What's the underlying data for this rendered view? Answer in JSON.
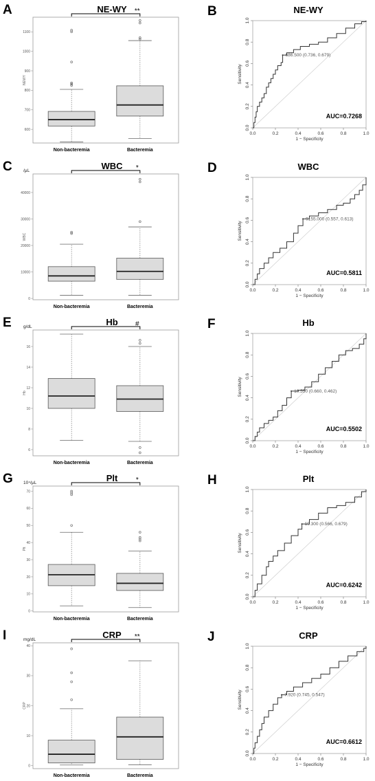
{
  "panels": [
    {
      "letter": "A",
      "title": "NE-WY",
      "unit": "",
      "ylabel": "NEWY",
      "sig": "**",
      "chart_data": {
        "type": "box",
        "categories": [
          "Non-bacteremia",
          "Bacteremia"
        ],
        "ylim": [
          530,
          1175
        ],
        "yticks": [
          600,
          700,
          800,
          900,
          1000,
          1100
        ],
        "boxes": [
          {
            "whisker_low": 535,
            "q1": 617,
            "median": 650,
            "q3": 692,
            "whisker_high": 805,
            "outliers": [
              825,
              832,
              838,
              945,
              1100,
              1108
            ]
          },
          {
            "whisker_low": 553,
            "q1": 668,
            "median": 725,
            "q3": 823,
            "whisker_high": 1055,
            "outliers": [
              1063,
              1070,
              1145,
              1158
            ]
          }
        ]
      }
    },
    {
      "letter": "B",
      "title": "NE-WY",
      "annotation": "686.500 (0.736, 0.679)",
      "auc": "AUC=0.7268",
      "xlabel": "1 − Specificity",
      "ylabel": "Sensitivity",
      "chart_data": {
        "type": "line",
        "xlim": [
          0,
          1
        ],
        "ylim": [
          0,
          1
        ],
        "ticks": [
          0.0,
          0.2,
          0.4,
          0.6,
          0.8,
          1.0
        ],
        "threshold_point": [
          0.264,
          0.679
        ],
        "roc": [
          [
            0,
            0
          ],
          [
            0.01,
            0.05
          ],
          [
            0.02,
            0.1
          ],
          [
            0.03,
            0.15
          ],
          [
            0.04,
            0.2
          ],
          [
            0.06,
            0.24
          ],
          [
            0.08,
            0.28
          ],
          [
            0.1,
            0.32
          ],
          [
            0.12,
            0.38
          ],
          [
            0.14,
            0.42
          ],
          [
            0.16,
            0.46
          ],
          [
            0.18,
            0.5
          ],
          [
            0.2,
            0.54
          ],
          [
            0.22,
            0.58
          ],
          [
            0.25,
            0.61
          ],
          [
            0.264,
            0.679
          ],
          [
            0.3,
            0.7
          ],
          [
            0.36,
            0.73
          ],
          [
            0.42,
            0.76
          ],
          [
            0.5,
            0.78
          ],
          [
            0.58,
            0.8
          ],
          [
            0.66,
            0.84
          ],
          [
            0.74,
            0.88
          ],
          [
            0.82,
            0.93
          ],
          [
            0.9,
            0.97
          ],
          [
            0.96,
            0.99
          ],
          [
            1,
            1
          ]
        ]
      }
    },
    {
      "letter": "C",
      "title": "WBC",
      "unit": "/μL",
      "ylabel": "WBC",
      "sig": "*",
      "chart_data": {
        "type": "box",
        "categories": [
          "Non-bacteremia",
          "Bacteremia"
        ],
        "ylim": [
          -500,
          47000
        ],
        "yticks": [
          0,
          10000,
          20000,
          30000,
          40000
        ],
        "boxes": [
          {
            "whisker_low": 1200,
            "q1": 6500,
            "median": 8500,
            "q3": 12000,
            "whisker_high": 20500,
            "outliers": [
              24500,
              25000
            ]
          },
          {
            "whisker_low": 1200,
            "q1": 7200,
            "median": 10200,
            "q3": 15200,
            "whisker_high": 27000,
            "outliers": [
              29000,
              44000,
              45000
            ]
          }
        ]
      }
    },
    {
      "letter": "D",
      "title": "WBC",
      "annotation": "9155.000 (0.557, 0.613)",
      "auc": "AUC=0.5811",
      "xlabel": "1 − Specificity",
      "ylabel": "Sensitivity",
      "chart_data": {
        "type": "line",
        "xlim": [
          0,
          1
        ],
        "ylim": [
          0,
          1
        ],
        "ticks": [
          0.0,
          0.2,
          0.4,
          0.6,
          0.8,
          1.0
        ],
        "threshold_point": [
          0.443,
          0.613
        ],
        "roc": [
          [
            0,
            0
          ],
          [
            0.02,
            0.05
          ],
          [
            0.04,
            0.1
          ],
          [
            0.06,
            0.15
          ],
          [
            0.1,
            0.2
          ],
          [
            0.14,
            0.25
          ],
          [
            0.18,
            0.3
          ],
          [
            0.24,
            0.34
          ],
          [
            0.3,
            0.4
          ],
          [
            0.36,
            0.48
          ],
          [
            0.4,
            0.55
          ],
          [
            0.443,
            0.613
          ],
          [
            0.5,
            0.64
          ],
          [
            0.58,
            0.67
          ],
          [
            0.66,
            0.7
          ],
          [
            0.74,
            0.74
          ],
          [
            0.8,
            0.76
          ],
          [
            0.86,
            0.8
          ],
          [
            0.9,
            0.84
          ],
          [
            0.94,
            0.88
          ],
          [
            0.97,
            0.93
          ],
          [
            1,
            1
          ]
        ]
      }
    },
    {
      "letter": "E",
      "title": "Hb",
      "unit": "g/dL",
      "ylabel": "Hb",
      "sig": "#",
      "chart_data": {
        "type": "box",
        "categories": [
          "Non-bacteremia",
          "Bacteremia"
        ],
        "ylim": [
          5.4,
          17.6
        ],
        "yticks": [
          6,
          8,
          10,
          12,
          14,
          16
        ],
        "boxes": [
          {
            "whisker_low": 6.9,
            "q1": 10.0,
            "median": 11.2,
            "q3": 12.9,
            "whisker_high": 17.2,
            "outliers": []
          },
          {
            "whisker_low": 6.8,
            "q1": 9.7,
            "median": 10.9,
            "q3": 12.2,
            "whisker_high": 16.0,
            "outliers": [
              16.3,
              16.6,
              6.2,
              5.7
            ]
          }
        ]
      }
    },
    {
      "letter": "F",
      "title": "Hb",
      "annotation": "10.550 (0.660, 0.462)",
      "auc": "AUC=0.5502",
      "xlabel": "1 − Specificity",
      "ylabel": "Sensitivity",
      "chart_data": {
        "type": "line",
        "xlim": [
          0,
          1
        ],
        "ylim": [
          0,
          1
        ],
        "ticks": [
          0.0,
          0.2,
          0.4,
          0.6,
          0.8,
          1.0
        ],
        "threshold_point": [
          0.34,
          0.462
        ],
        "roc": [
          [
            0,
            0
          ],
          [
            0.02,
            0.04
          ],
          [
            0.04,
            0.08
          ],
          [
            0.06,
            0.12
          ],
          [
            0.1,
            0.16
          ],
          [
            0.14,
            0.19
          ],
          [
            0.18,
            0.22
          ],
          [
            0.22,
            0.28
          ],
          [
            0.26,
            0.33
          ],
          [
            0.3,
            0.4
          ],
          [
            0.34,
            0.462
          ],
          [
            0.4,
            0.47
          ],
          [
            0.46,
            0.5
          ],
          [
            0.52,
            0.55
          ],
          [
            0.58,
            0.62
          ],
          [
            0.64,
            0.68
          ],
          [
            0.7,
            0.74
          ],
          [
            0.76,
            0.8
          ],
          [
            0.82,
            0.84
          ],
          [
            0.88,
            0.86
          ],
          [
            0.94,
            0.9
          ],
          [
            0.98,
            0.95
          ],
          [
            1,
            1
          ]
        ]
      }
    },
    {
      "letter": "G",
      "title": "Plt",
      "unit": "10⁴/μL",
      "ylabel": "Plt",
      "sig": "*",
      "chart_data": {
        "type": "box",
        "categories": [
          "Non-bacteremia",
          "Bacteremia"
        ],
        "ylim": [
          -0.5,
          73
        ],
        "yticks": [
          0,
          10,
          20,
          30,
          40,
          50,
          60,
          70
        ],
        "boxes": [
          {
            "whisker_low": 3,
            "q1": 14.8,
            "median": 21.2,
            "q3": 27.2,
            "whisker_high": 46,
            "outliers": [
              50,
              68,
              69,
              70
            ]
          },
          {
            "whisker_low": 2,
            "q1": 12,
            "median": 16.2,
            "q3": 22,
            "whisker_high": 35,
            "outliers": [
              41,
              42,
              43,
              46
            ]
          }
        ]
      }
    },
    {
      "letter": "H",
      "title": "Plt",
      "annotation": "19.300 (0.566, 0.679)",
      "auc": "AUC=0.6242",
      "xlabel": "1 − Specificity",
      "ylabel": "Sensitivity",
      "chart_data": {
        "type": "line",
        "xlim": [
          0,
          1
        ],
        "ylim": [
          0,
          1
        ],
        "ticks": [
          0.0,
          0.2,
          0.4,
          0.6,
          0.8,
          1.0
        ],
        "threshold_point": [
          0.434,
          0.679
        ],
        "roc": [
          [
            0,
            0
          ],
          [
            0.02,
            0.06
          ],
          [
            0.04,
            0.12
          ],
          [
            0.08,
            0.2
          ],
          [
            0.12,
            0.28
          ],
          [
            0.14,
            0.33
          ],
          [
            0.18,
            0.38
          ],
          [
            0.22,
            0.43
          ],
          [
            0.28,
            0.5
          ],
          [
            0.34,
            0.57
          ],
          [
            0.4,
            0.63
          ],
          [
            0.434,
            0.679
          ],
          [
            0.5,
            0.72
          ],
          [
            0.58,
            0.78
          ],
          [
            0.66,
            0.83
          ],
          [
            0.74,
            0.85
          ],
          [
            0.82,
            0.88
          ],
          [
            0.9,
            0.93
          ],
          [
            0.96,
            0.98
          ],
          [
            1,
            1
          ]
        ]
      }
    },
    {
      "letter": "I",
      "title": "CRP",
      "unit": "mg/dL",
      "ylabel": "CRP",
      "sig": "**",
      "chart_data": {
        "type": "box",
        "categories": [
          "Non-bacteremia",
          "Bacteremia"
        ],
        "ylim": [
          -1,
          41
        ],
        "yticks": [
          0,
          10,
          20,
          30,
          40
        ],
        "boxes": [
          {
            "whisker_low": 0.2,
            "q1": 0.9,
            "median": 3.8,
            "q3": 8.5,
            "whisker_high": 19,
            "outliers": [
              22,
              28,
              31,
              39
            ]
          },
          {
            "whisker_low": 0.3,
            "q1": 2.1,
            "median": 9.6,
            "q3": 16.2,
            "whisker_high": 35,
            "outliers": []
          }
        ]
      }
    },
    {
      "letter": "J",
      "title": "CRP",
      "annotation": "7.920 (0.745, 0.547)",
      "auc": "AUC=0.6612",
      "xlabel": "1 − Specificity",
      "ylabel": "Sensitivity",
      "chart_data": {
        "type": "line",
        "xlim": [
          0,
          1
        ],
        "ylim": [
          0,
          1
        ],
        "ticks": [
          0.0,
          0.2,
          0.4,
          0.6,
          0.8,
          1.0
        ],
        "threshold_point": [
          0.255,
          0.547
        ],
        "roc": [
          [
            0,
            0
          ],
          [
            0.01,
            0.05
          ],
          [
            0.02,
            0.1
          ],
          [
            0.04,
            0.16
          ],
          [
            0.06,
            0.22
          ],
          [
            0.08,
            0.28
          ],
          [
            0.1,
            0.34
          ],
          [
            0.14,
            0.4
          ],
          [
            0.18,
            0.46
          ],
          [
            0.22,
            0.52
          ],
          [
            0.255,
            0.547
          ],
          [
            0.3,
            0.58
          ],
          [
            0.36,
            0.62
          ],
          [
            0.44,
            0.66
          ],
          [
            0.52,
            0.7
          ],
          [
            0.6,
            0.74
          ],
          [
            0.68,
            0.8
          ],
          [
            0.76,
            0.86
          ],
          [
            0.84,
            0.91
          ],
          [
            0.92,
            0.95
          ],
          [
            0.98,
            0.98
          ],
          [
            1,
            1
          ]
        ]
      }
    }
  ]
}
